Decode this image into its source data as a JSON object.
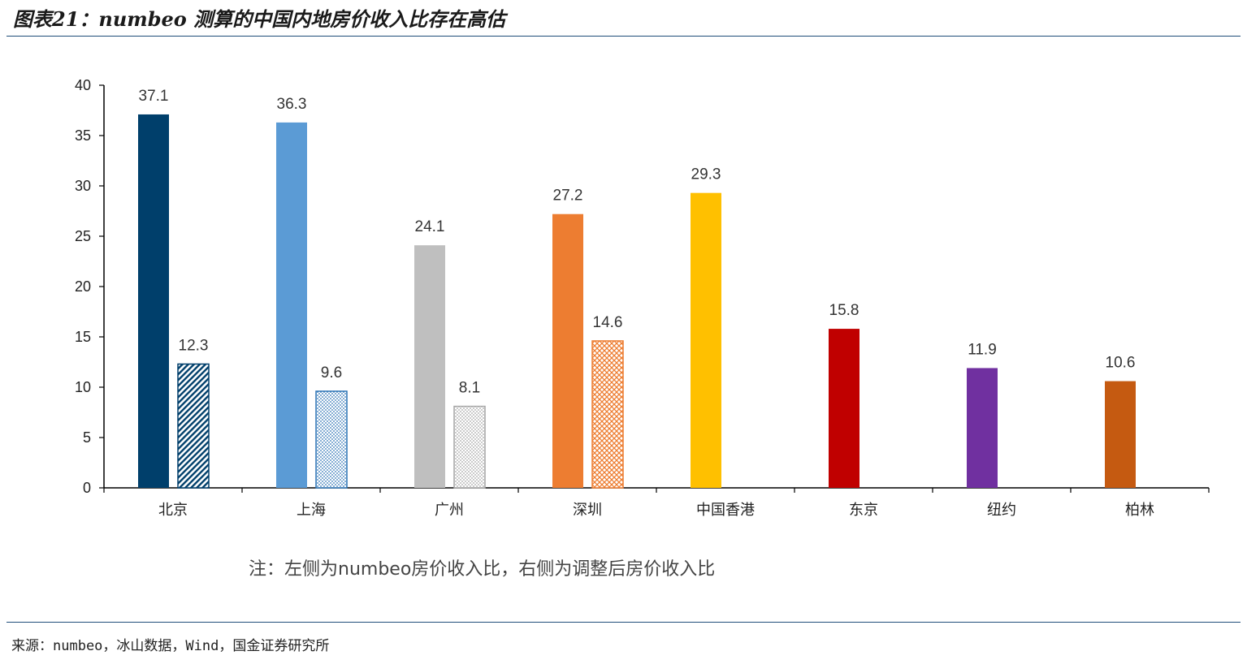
{
  "title": "图表21：numbeo 测算的中国内地房价收入比存在高估",
  "note": "注：左侧为numbeo房价收入比，右侧为调整后房价收入比",
  "source": "来源：numbeo，冰山数据，Wind，国金证券研究所",
  "chart_data": {
    "type": "bar",
    "title": "",
    "xlabel": "",
    "ylabel": "",
    "ylim": [
      0,
      40
    ],
    "yticks": [
      0,
      5,
      10,
      15,
      20,
      25,
      30,
      35,
      40
    ],
    "grid": false,
    "categories": [
      "北京",
      "上海",
      "广州",
      "深圳",
      "中国香港",
      "东京",
      "纽约",
      "柏林"
    ],
    "series": [
      {
        "values": [
          37.1,
          36.3,
          24.1,
          27.2,
          29.3,
          15.8,
          11.9,
          10.6
        ],
        "colors": [
          "#003f6b",
          "#5b9bd5",
          "#bfbfbf",
          "#ed7d31",
          "#ffc000",
          "#c00000",
          "#7030a0",
          "#c55a11"
        ]
      },
      {
        "values": [
          12.3,
          9.6,
          8.1,
          14.6,
          null,
          null,
          null,
          null
        ],
        "colors": [
          "#003f6b",
          "#2e75b6",
          "#a6a6a6",
          "#ed7d31",
          null,
          null,
          null,
          null
        ],
        "patterns": [
          "diagonal",
          "dots",
          "dots",
          "crosshatch",
          null,
          null,
          null,
          null
        ]
      }
    ]
  }
}
